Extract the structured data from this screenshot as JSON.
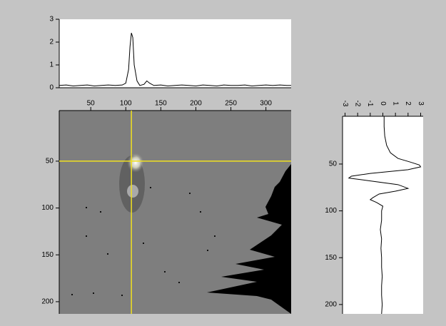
{
  "chart_data": [
    {
      "type": "line",
      "orientation": "horizontal",
      "x": [
        5,
        15,
        25,
        35,
        45,
        55,
        65,
        75,
        85,
        95,
        100,
        104,
        106,
        108,
        110,
        112,
        116,
        120,
        126,
        130,
        134,
        140,
        150,
        160,
        170,
        180,
        190,
        200,
        210,
        220,
        230,
        240,
        250,
        260,
        270,
        280,
        290,
        300,
        310,
        320,
        330,
        336
      ],
      "values": [
        0.1,
        0.12,
        0.08,
        0.1,
        0.12,
        0.08,
        0.1,
        0.12,
        0.1,
        0.12,
        0.2,
        0.8,
        1.8,
        2.4,
        2.2,
        1.0,
        0.3,
        0.1,
        0.15,
        0.3,
        0.2,
        0.1,
        0.12,
        0.08,
        0.1,
        0.12,
        0.1,
        0.08,
        0.12,
        0.1,
        0.08,
        0.12,
        0.1,
        0.1,
        0.12,
        0.08,
        0.1,
        0.12,
        0.1,
        0.12,
        0.1,
        0.1
      ],
      "color": "#000000",
      "xlim": [
        5,
        336
      ],
      "ylim": [
        0,
        3
      ],
      "yticks": [
        0,
        1,
        2,
        3
      ]
    },
    {
      "type": "image",
      "xlim": [
        5,
        336
      ],
      "ylim": [
        -4,
        213
      ],
      "xticks": [
        50,
        100,
        150,
        200,
        250,
        300
      ],
      "yticks": [
        50,
        100,
        150,
        200
      ],
      "cursor": {
        "x": 108,
        "y": 50
      },
      "cursor_color": "#f0e020"
    },
    {
      "type": "line",
      "orientation": "vertical",
      "y": [
        -1,
        10,
        20,
        30,
        38,
        44,
        48,
        51,
        53,
        56,
        60,
        63,
        65,
        68,
        72,
        76,
        79,
        82,
        86,
        88,
        91,
        95,
        100,
        110,
        120,
        130,
        140,
        150,
        160,
        170,
        180,
        190,
        200,
        210
      ],
      "values": [
        0.1,
        0.1,
        0.15,
        0.3,
        0.6,
        1.2,
        2.2,
        2.9,
        3.0,
        2.0,
        -1.0,
        -2.5,
        -2.7,
        -1.0,
        1.2,
        2.0,
        1.0,
        -0.3,
        -0.8,
        -1.0,
        -0.5,
        0.0,
        -0.1,
        -0.1,
        -0.2,
        -0.1,
        -0.15,
        -0.1,
        -0.1,
        -0.05,
        -0.1,
        -0.1,
        -0.05,
        -0.1
      ],
      "color": "#000000",
      "xlim": [
        -3.2,
        3.2
      ],
      "xticks": [
        -3,
        -2,
        -1,
        0,
        1,
        2,
        3
      ],
      "ylim": [
        -1,
        210
      ],
      "yticks": [
        50,
        100,
        150,
        200
      ]
    }
  ]
}
